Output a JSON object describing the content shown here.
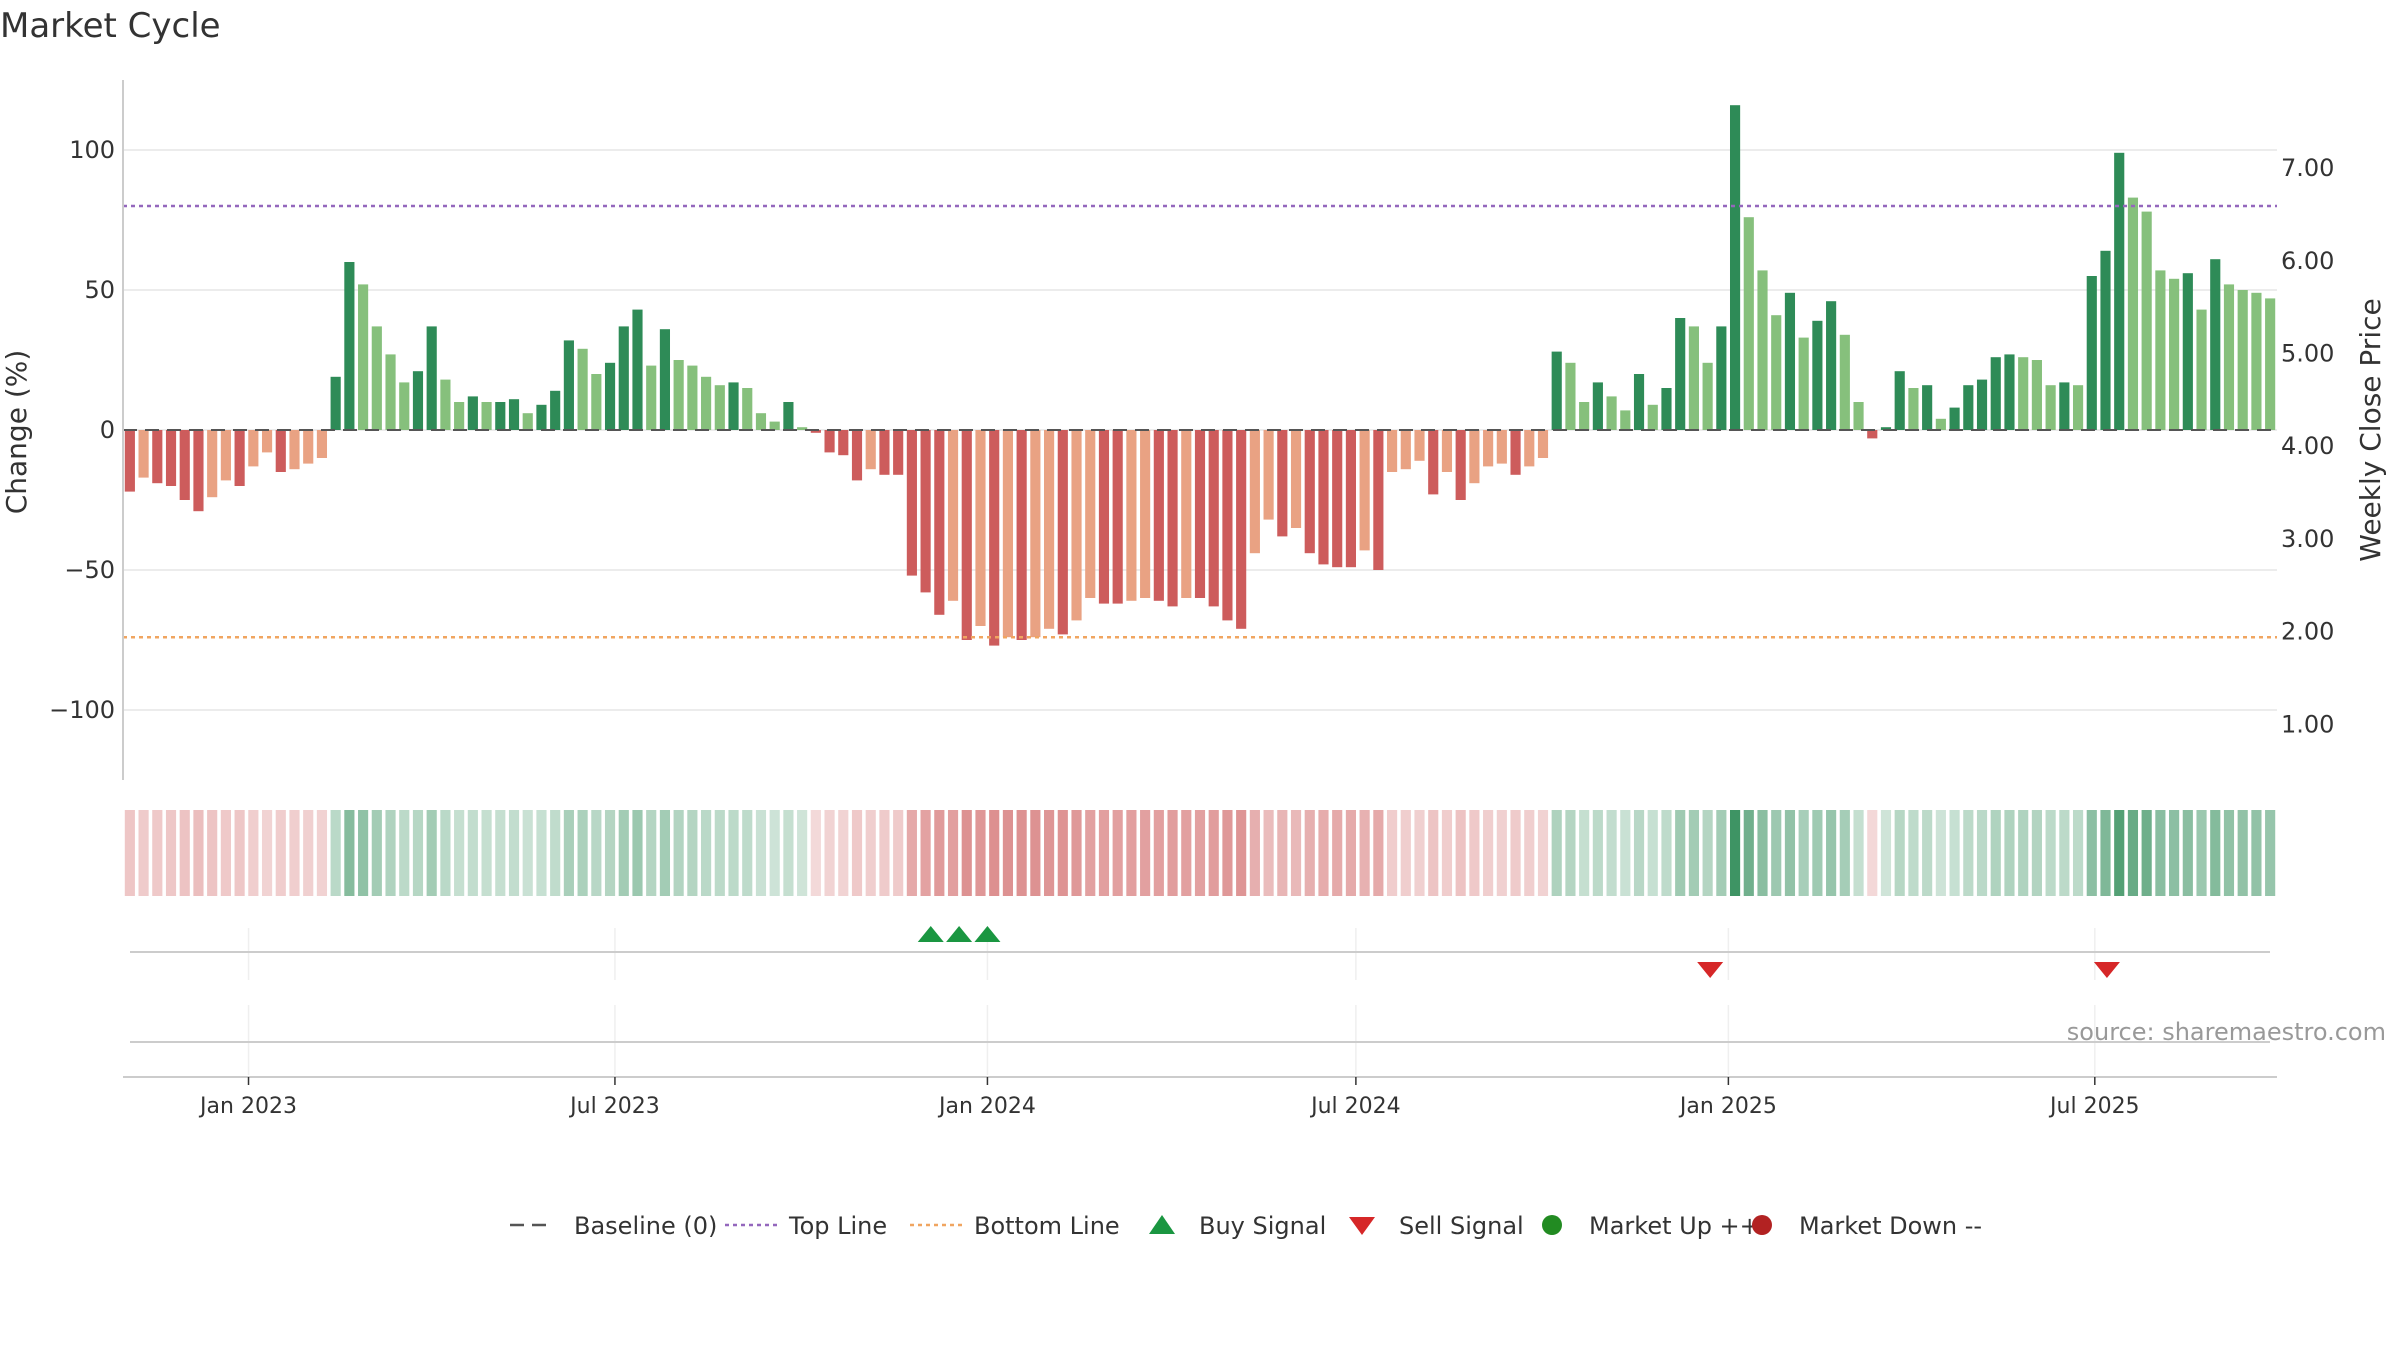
{
  "chart_data": {
    "type": "bar",
    "title": "Market Cycle",
    "ylabel": "Change (%)",
    "y2label": "Weekly Close Price",
    "ylim": [
      -125,
      125
    ],
    "y2lim": [
      0.4,
      7.95
    ],
    "yticks": [
      100,
      50,
      0,
      -50,
      -100
    ],
    "ytick_labels": [
      "100",
      "50",
      "0",
      "−50",
      "−100"
    ],
    "y2ticks": [
      7,
      6,
      5,
      4,
      3,
      2,
      1
    ],
    "y2tick_labels": [
      "7.00",
      "6.00",
      "5.00",
      "4.00",
      "3.00",
      "2.00",
      "1.00"
    ],
    "x_start": "2022-10-31",
    "x_end": "2025-09-29",
    "xticks": [
      "2023-01-01",
      "2023-07-01",
      "2024-01-01",
      "2024-07-01",
      "2025-01-01",
      "2025-07-01"
    ],
    "xtick_labels": [
      "Jan 2023",
      "Jul 2023",
      "Jan 2024",
      "Jul 2024",
      "Jan 2025",
      "Jul 2025"
    ],
    "top_line": 80,
    "bottom_line": -74,
    "baseline": 0,
    "grid": true,
    "legend_position": "bottom-center",
    "values": [
      -22,
      -17,
      -19,
      -20,
      -25,
      -29,
      -24,
      -18,
      -20,
      -13,
      -8,
      -15,
      -14,
      -12,
      -10,
      19,
      60,
      52,
      37,
      27,
      17,
      21,
      37,
      18,
      10,
      12,
      10,
      10,
      11,
      6,
      9,
      14,
      32,
      29,
      20,
      24,
      37,
      43,
      23,
      36,
      25,
      23,
      19,
      16,
      17,
      15,
      6,
      3,
      10,
      1,
      -1,
      -8,
      -9,
      -18,
      -14,
      -16,
      -16,
      -52,
      -58,
      -66,
      -61,
      -75,
      -70,
      -77,
      -74,
      -75,
      -74,
      -71,
      -73,
      -68,
      -60,
      -62,
      -62,
      -61,
      -60,
      -61,
      -63,
      -60,
      -60,
      -63,
      -68,
      -71,
      -44,
      -32,
      -38,
      -35,
      -44,
      -48,
      -49,
      -49,
      -43,
      -50,
      -15,
      -14,
      -11,
      -23,
      -15,
      -25,
      -19,
      -13,
      -12,
      -16,
      -13,
      -10,
      28,
      24,
      10,
      17,
      12,
      7,
      20,
      9,
      15,
      40,
      37,
      24,
      37,
      116,
      76,
      57,
      41,
      49,
      33,
      39,
      46,
      34,
      10,
      -3,
      1,
      21,
      15,
      16,
      4,
      8,
      16,
      18,
      26,
      27,
      26,
      25,
      16,
      17,
      16,
      55,
      64,
      99,
      83,
      78,
      57,
      54,
      56,
      43,
      61,
      52,
      50,
      49,
      47
    ],
    "buy_signals": [
      "2023-12-04",
      "2023-12-18",
      "2024-01-01"
    ],
    "sell_signals": [
      "2024-12-23",
      "2025-07-07"
    ],
    "colors": {
      "up_dark": "#2e8b57",
      "up_light": "#86c07c",
      "down_dark": "#cd5c5c",
      "down_light": "#e9a283",
      "top_line": "#9467bd",
      "bottom_line": "#f0a560",
      "buy": "#1a9641",
      "sell": "#d62728",
      "market_up": "#228b22",
      "market_down": "#b22222"
    },
    "legend": [
      {
        "label": "Baseline (0)",
        "marker": "dash-line"
      },
      {
        "label": "Top Line",
        "marker": "dotted-purple"
      },
      {
        "label": "Bottom Line",
        "marker": "dotted-orange"
      },
      {
        "label": "Buy Signal",
        "marker": "triangle-up-green"
      },
      {
        "label": "Sell Signal",
        "marker": "triangle-down-red"
      },
      {
        "label": "Market Up ++",
        "marker": "dot-green"
      },
      {
        "label": "Market Down --",
        "marker": "dot-red"
      }
    ]
  },
  "source_text": "source: sharemaestro.com"
}
